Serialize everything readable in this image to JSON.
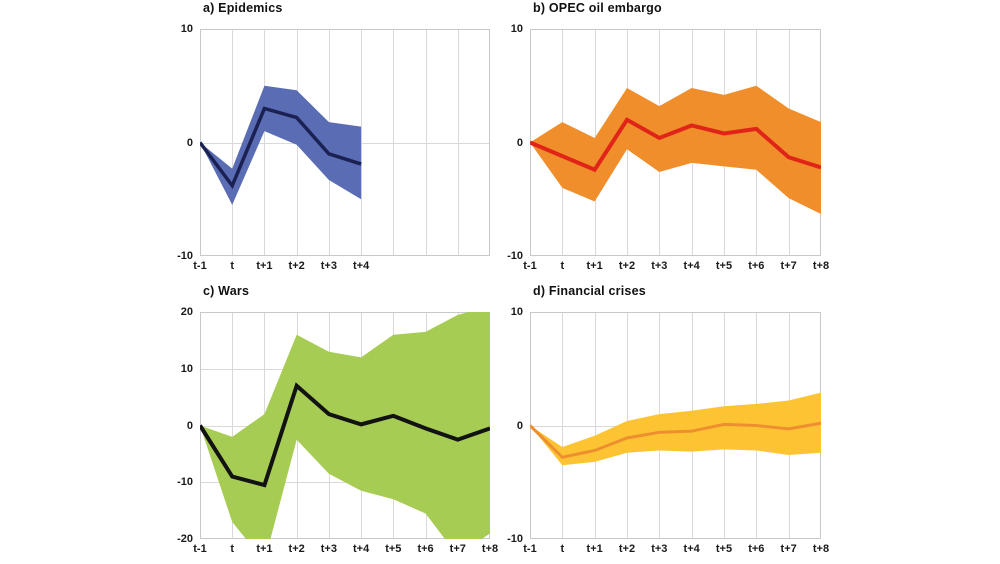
{
  "figure": {
    "background": "#ffffff",
    "grid_color": "#d9d9d9",
    "border_color": "#c8c8c8",
    "text_color": "#1a1a1a"
  },
  "chart_data": [
    {
      "type": "line",
      "title": "a) Epidemics",
      "x_labels": [
        "t-1",
        "t",
        "t+1",
        "t+2",
        "t+3",
        "t+4"
      ],
      "x_grid_count": 10,
      "ylim": [
        -10,
        10
      ],
      "yticks": [
        10,
        0,
        -10
      ],
      "grid": true,
      "legend": "none",
      "colors": {
        "band": "#5a6db4",
        "line": "#1b2153"
      },
      "line_width": 3.5,
      "series": [
        {
          "name": "upper",
          "values": [
            0,
            -2.3,
            5.0,
            4.6,
            1.8,
            1.4
          ]
        },
        {
          "name": "mean",
          "values": [
            0,
            -3.8,
            3.0,
            2.2,
            -1.0,
            -1.9
          ]
        },
        {
          "name": "lower",
          "values": [
            0,
            -5.5,
            1.0,
            -0.2,
            -3.3,
            -5.0
          ]
        }
      ]
    },
    {
      "type": "line",
      "title": "b) OPEC oil embargo",
      "x_labels": [
        "t-1",
        "t",
        "t+1",
        "t+2",
        "t+3",
        "t+4",
        "t+5",
        "t+6",
        "t+7",
        "t+8"
      ],
      "x_grid_count": 10,
      "ylim": [
        -10,
        10
      ],
      "yticks": [
        10,
        0,
        -10
      ],
      "grid": true,
      "legend": "none",
      "colors": {
        "band": "#f08e2b",
        "line": "#e02418"
      },
      "line_width": 4,
      "series": [
        {
          "name": "upper",
          "values": [
            0,
            1.8,
            0.4,
            4.8,
            3.2,
            4.8,
            4.2,
            5.0,
            3.0,
            1.8
          ]
        },
        {
          "name": "mean",
          "values": [
            0,
            -1.2,
            -2.4,
            2.0,
            0.4,
            1.5,
            0.8,
            1.2,
            -1.3,
            -2.2
          ]
        },
        {
          "name": "lower",
          "values": [
            0,
            -4.0,
            -5.2,
            -0.6,
            -2.6,
            -1.8,
            -2.1,
            -2.4,
            -4.9,
            -6.3
          ]
        }
      ]
    },
    {
      "type": "line",
      "title": "c) Wars",
      "x_labels": [
        "t-1",
        "t",
        "t+1",
        "t+2",
        "t+3",
        "t+4",
        "t+5",
        "t+6",
        "t+7",
        "t+8"
      ],
      "x_grid_count": 10,
      "ylim": [
        -20,
        20
      ],
      "yticks": [
        20,
        10,
        0,
        -10,
        -20
      ],
      "grid": true,
      "legend": "none",
      "colors": {
        "band": "#a7cc54",
        "line": "#121212"
      },
      "line_width": 4,
      "series": [
        {
          "name": "upper",
          "values": [
            0,
            -2,
            2,
            16,
            13,
            12,
            16,
            16.5,
            19.5,
            21
          ]
        },
        {
          "name": "mean",
          "values": [
            0,
            -9,
            -10.5,
            7,
            2,
            0.2,
            1.7,
            -0.5,
            -2.5,
            -0.5
          ]
        },
        {
          "name": "lower",
          "values": [
            0,
            -17,
            -24,
            -2.5,
            -8.5,
            -11.5,
            -13,
            -15.5,
            -23,
            -19
          ]
        }
      ]
    },
    {
      "type": "line",
      "title": "d) Financial crises",
      "x_labels": [
        "t-1",
        "t",
        "t+1",
        "t+2",
        "t+3",
        "t+4",
        "t+5",
        "t+6",
        "t+7",
        "t+8"
      ],
      "x_grid_count": 10,
      "ylim": [
        -10,
        10
      ],
      "yticks": [
        10,
        0,
        -10
      ],
      "grid": true,
      "legend": "none",
      "colors": {
        "band": "#fcc433",
        "line": "#ee8f2f"
      },
      "line_width": 3,
      "series": [
        {
          "name": "upper",
          "values": [
            0,
            -1.9,
            -0.9,
            0.4,
            1.0,
            1.3,
            1.7,
            1.9,
            2.2,
            2.9
          ]
        },
        {
          "name": "mean",
          "values": [
            0,
            -2.8,
            -2.2,
            -1.1,
            -0.6,
            -0.5,
            0.1,
            0.0,
            -0.3,
            0.2
          ]
        },
        {
          "name": "lower",
          "values": [
            0,
            -3.5,
            -3.2,
            -2.4,
            -2.2,
            -2.3,
            -2.1,
            -2.2,
            -2.6,
            -2.4
          ]
        }
      ]
    }
  ]
}
